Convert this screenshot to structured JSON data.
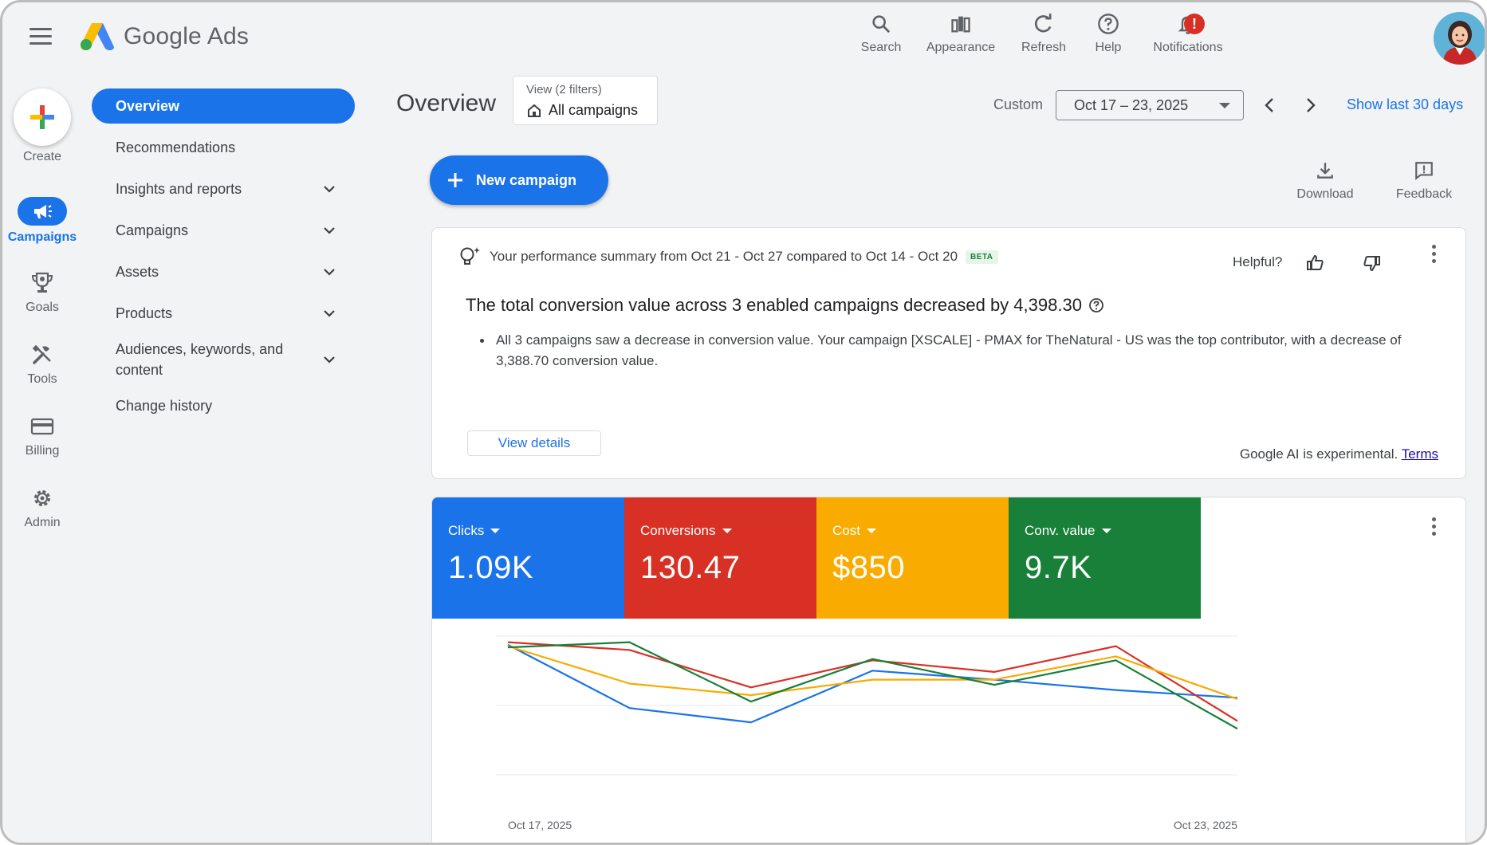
{
  "brand": "Google Ads",
  "topbar": {
    "search": "Search",
    "appearance": "Appearance",
    "refresh": "Refresh",
    "help": "Help",
    "notifications": "Notifications",
    "notifications_badge": "!"
  },
  "rail": {
    "create": "Create",
    "campaigns": "Campaigns",
    "goals": "Goals",
    "tools": "Tools",
    "billing": "Billing",
    "admin": "Admin"
  },
  "nav": {
    "items": [
      {
        "label": "Overview"
      },
      {
        "label": "Recommendations"
      },
      {
        "label": "Insights and reports"
      },
      {
        "label": "Campaigns"
      },
      {
        "label": "Assets"
      },
      {
        "label": "Products"
      },
      {
        "label": "Audiences, keywords, and content"
      },
      {
        "label": "Change history"
      }
    ]
  },
  "header": {
    "title": "Overview",
    "filter_line1": "View (2 filters)",
    "filter_line2": "All campaigns",
    "custom": "Custom",
    "date_range": "Oct 17 – 23, 2025",
    "show_last": "Show last 30 days"
  },
  "actions": {
    "new_campaign": "New campaign",
    "download": "Download",
    "feedback": "Feedback"
  },
  "summary": {
    "heading": "Your performance summary from Oct 21 - Oct 27 compared to Oct 14 - Oct 20",
    "beta": "BETA",
    "helpful": "Helpful?",
    "main": "The total conversion value across 3 enabled campaigns decreased by 4,398.30",
    "bullet": "All 3 campaigns saw a decrease in conversion value. Your campaign [XSCALE] - PMAX for TheNatural - US was the top contributor, with a decrease of 3,388.70 conversion value.",
    "view_details": "View details",
    "ai_note": "Google AI is experimental.",
    "terms": "Terms"
  },
  "metrics": [
    {
      "label": "Clicks",
      "value": "1.09K",
      "color": "#1a73e8"
    },
    {
      "label": "Conversions",
      "value": "130.47",
      "color": "#d93025"
    },
    {
      "label": "Cost",
      "value": "$850",
      "color": "#f9ab00"
    },
    {
      "label": "Conv. value",
      "value": "9.7K",
      "color": "#188038"
    }
  ],
  "chart_data": {
    "type": "line",
    "x_labels_shown": [
      "Oct 17, 2025",
      "Oct 23, 2025"
    ],
    "x": [
      "Oct 17",
      "Oct 18",
      "Oct 19",
      "Oct 20",
      "Oct 21",
      "Oct 22",
      "Oct 23"
    ],
    "ylim": [
      0,
      100
    ],
    "grid": true,
    "series": [
      {
        "color": "#1a73e8",
        "values": [
          97,
          48,
          37,
          77,
          70,
          62,
          56
        ]
      },
      {
        "color": "#d93025",
        "values": [
          99,
          93,
          64,
          85,
          76,
          96,
          38
        ]
      },
      {
        "color": "#f9ab00",
        "values": [
          96,
          67,
          58,
          70,
          70,
          88,
          55
        ]
      },
      {
        "color": "#188038",
        "values": [
          95,
          99,
          53,
          86,
          66,
          85,
          32
        ]
      }
    ]
  }
}
